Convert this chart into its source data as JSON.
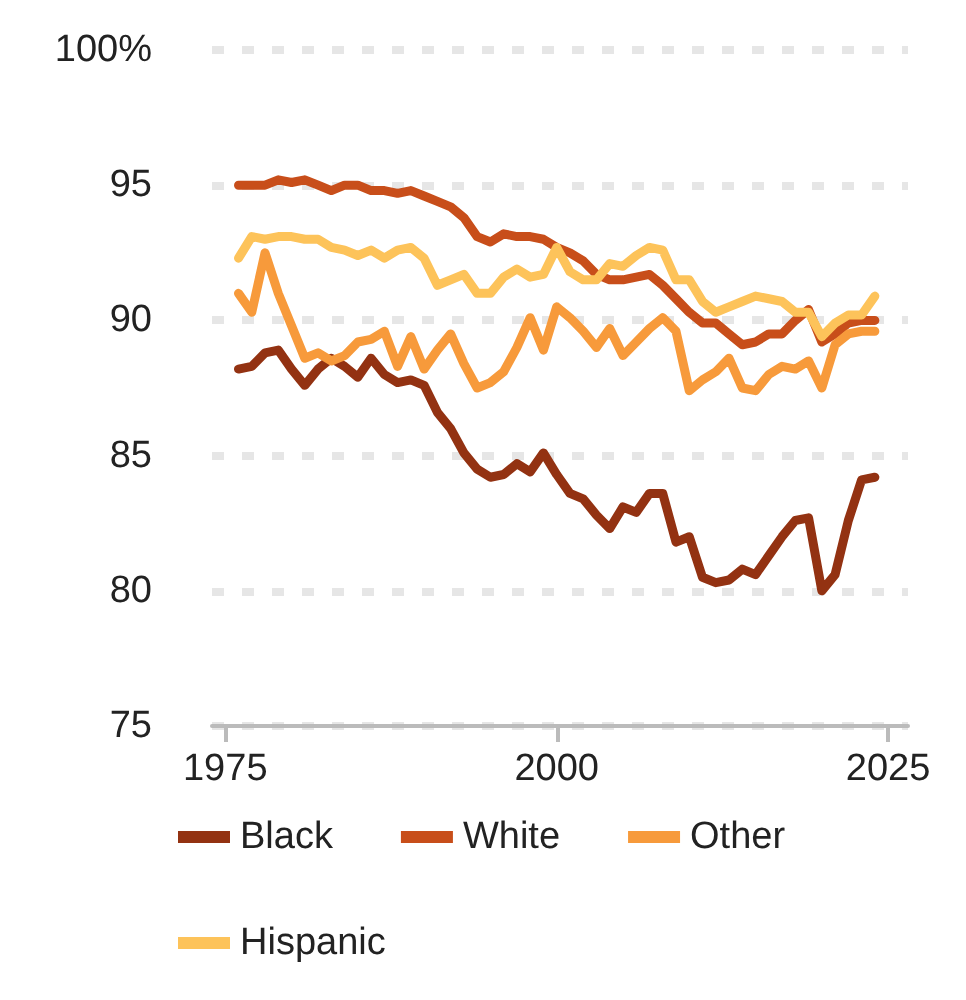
{
  "chart_data": {
    "type": "line",
    "x": [
      1976,
      1977,
      1978,
      1979,
      1980,
      1981,
      1982,
      1983,
      1984,
      1985,
      1986,
      1987,
      1988,
      1989,
      1990,
      1991,
      1992,
      1993,
      1994,
      1995,
      1996,
      1997,
      1998,
      1999,
      2000,
      2001,
      2002,
      2003,
      2004,
      2005,
      2006,
      2007,
      2008,
      2009,
      2010,
      2011,
      2012,
      2013,
      2014,
      2015,
      2016,
      2017,
      2018,
      2019,
      2020,
      2021,
      2022,
      2023,
      2024
    ],
    "series": [
      {
        "name": "Black",
        "color": "#933212",
        "values": [
          88.2,
          88.3,
          88.8,
          88.9,
          88.2,
          87.6,
          88.2,
          88.6,
          88.3,
          87.9,
          88.6,
          88.0,
          87.7,
          87.8,
          87.6,
          86.6,
          86.0,
          85.1,
          84.5,
          84.2,
          84.3,
          84.7,
          84.4,
          85.1,
          84.3,
          83.6,
          83.4,
          82.8,
          82.3,
          83.1,
          82.9,
          83.6,
          83.6,
          81.8,
          82.0,
          80.5,
          80.3,
          80.4,
          80.8,
          80.6,
          81.3,
          82.0,
          82.6,
          82.7,
          80.0,
          80.6,
          82.6,
          84.1,
          84.2
        ]
      },
      {
        "name": "White",
        "color": "#c84e1a",
        "values": [
          95.0,
          95.0,
          95.0,
          95.2,
          95.1,
          95.2,
          95.0,
          94.8,
          95.0,
          95.0,
          94.8,
          94.8,
          94.7,
          94.8,
          94.6,
          94.4,
          94.2,
          93.8,
          93.1,
          92.9,
          93.2,
          93.1,
          93.1,
          93.0,
          92.7,
          92.5,
          92.2,
          91.7,
          91.5,
          91.5,
          91.6,
          91.7,
          91.3,
          90.8,
          90.3,
          89.9,
          89.9,
          89.5,
          89.1,
          89.2,
          89.5,
          89.5,
          90.0,
          90.4,
          89.2,
          89.5,
          89.9,
          90.0,
          90.0
        ]
      },
      {
        "name": "Other",
        "color": "#f79a3b",
        "values": [
          91.0,
          90.3,
          92.5,
          91.0,
          89.8,
          88.6,
          88.8,
          88.5,
          88.7,
          89.2,
          89.3,
          89.6,
          88.3,
          89.4,
          88.2,
          88.9,
          89.5,
          88.4,
          87.5,
          87.7,
          88.1,
          89.0,
          90.1,
          88.9,
          90.5,
          90.1,
          89.6,
          89.0,
          89.7,
          88.7,
          89.2,
          89.7,
          90.1,
          89.6,
          87.4,
          87.8,
          88.1,
          88.6,
          87.5,
          87.4,
          88.0,
          88.3,
          88.2,
          88.5,
          87.5,
          89.1,
          89.5,
          89.6,
          89.6
        ]
      },
      {
        "name": "Hispanic",
        "color": "#fdc35a",
        "values": [
          92.3,
          93.1,
          93.0,
          93.1,
          93.1,
          93.0,
          93.0,
          92.7,
          92.6,
          92.4,
          92.6,
          92.3,
          92.6,
          92.7,
          92.3,
          91.3,
          91.5,
          91.7,
          91.0,
          91.0,
          91.6,
          91.9,
          91.6,
          91.7,
          92.7,
          91.8,
          91.5,
          91.5,
          92.1,
          92.0,
          92.4,
          92.7,
          92.6,
          91.5,
          91.5,
          90.7,
          90.3,
          90.5,
          90.7,
          90.9,
          90.8,
          90.7,
          90.3,
          90.3,
          89.4,
          89.9,
          90.2,
          90.2,
          90.9
        ]
      }
    ],
    "xlim": [
      1974,
      2026.5
    ],
    "xticks": [
      1975,
      2000,
      2025
    ],
    "ylim": [
      75,
      100
    ],
    "yticks": [
      75,
      80,
      85,
      90,
      95,
      {
        "value": 100,
        "label": "100%"
      }
    ],
    "grid": "y",
    "legend": "bottom",
    "marker": "none",
    "line_style": "solid"
  }
}
